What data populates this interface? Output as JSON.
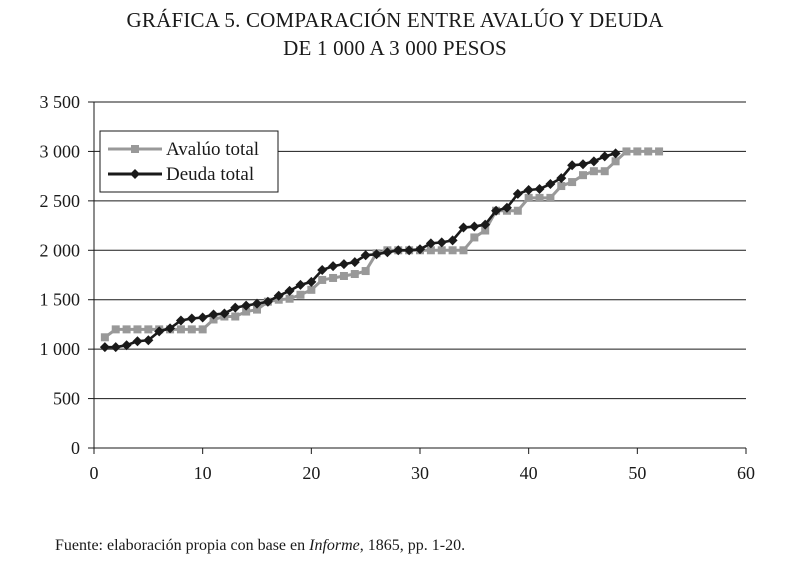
{
  "chart_data": {
    "type": "line",
    "title_line1": "GRÁFICA 5. COMPARACIÓN ENTRE AVALÚO Y DEUDA",
    "title_line2": "DE 1 000 A 3 000 PESOS",
    "xlabel": "",
    "ylabel": "",
    "xlim": [
      0,
      60
    ],
    "ylim": [
      0,
      3500
    ],
    "x_ticks": [
      0,
      10,
      20,
      30,
      40,
      50,
      60
    ],
    "x_tick_labels": [
      "0",
      "10",
      "20",
      "30",
      "40",
      "50",
      "60"
    ],
    "y_ticks": [
      0,
      500,
      1000,
      1500,
      2000,
      2500,
      3000,
      3500
    ],
    "y_tick_labels": [
      "0",
      "500",
      "1 000",
      "1 500",
      "2 000",
      "2 500",
      "3 000",
      "3 500"
    ],
    "grid": "horizontal",
    "legend_position": "top-left",
    "series": [
      {
        "name": "Avalúo total",
        "color": "#999999",
        "marker": "square",
        "x": [
          1,
          2,
          3,
          4,
          5,
          6,
          7,
          8,
          9,
          10,
          11,
          12,
          13,
          14,
          15,
          16,
          17,
          18,
          19,
          20,
          21,
          22,
          23,
          24,
          25,
          26,
          27,
          28,
          29,
          30,
          31,
          32,
          33,
          34,
          35,
          36,
          37,
          38,
          39,
          40,
          41,
          42,
          43,
          44,
          45,
          46,
          47,
          48,
          49,
          50,
          51,
          52
        ],
        "values": [
          1120,
          1200,
          1200,
          1200,
          1200,
          1200,
          1200,
          1200,
          1200,
          1200,
          1300,
          1330,
          1330,
          1380,
          1400,
          1480,
          1500,
          1510,
          1550,
          1600,
          1700,
          1720,
          1740,
          1760,
          1790,
          1970,
          2000,
          2000,
          2000,
          2000,
          2000,
          2000,
          2000,
          2000,
          2130,
          2200,
          2400,
          2400,
          2400,
          2530,
          2530,
          2530,
          2650,
          2690,
          2760,
          2800,
          2800,
          2900,
          3000,
          3000,
          3000,
          3000
        ]
      },
      {
        "name": "Deuda total",
        "color": "#1a1a1a",
        "marker": "diamond",
        "x": [
          1,
          2,
          3,
          4,
          5,
          6,
          7,
          8,
          9,
          10,
          11,
          12,
          13,
          14,
          15,
          16,
          17,
          18,
          19,
          20,
          21,
          22,
          23,
          24,
          25,
          26,
          27,
          28,
          29,
          30,
          31,
          32,
          33,
          34,
          35,
          36,
          37,
          38,
          39,
          40,
          41,
          42,
          43,
          44,
          45,
          46,
          47,
          48
        ],
        "values": [
          1020,
          1020,
          1040,
          1080,
          1090,
          1180,
          1210,
          1290,
          1310,
          1320,
          1350,
          1360,
          1420,
          1440,
          1460,
          1480,
          1540,
          1590,
          1650,
          1680,
          1800,
          1840,
          1860,
          1880,
          1950,
          1960,
          1980,
          2000,
          2000,
          2010,
          2070,
          2080,
          2100,
          2230,
          2240,
          2260,
          2400,
          2430,
          2570,
          2610,
          2620,
          2670,
          2730,
          2860,
          2870,
          2900,
          2950,
          2980
        ]
      }
    ]
  },
  "source": {
    "prefix": "Fuente: elaboración propia con base en ",
    "italic": "Informe",
    "suffix": ", 1865, pp. 1-20."
  }
}
